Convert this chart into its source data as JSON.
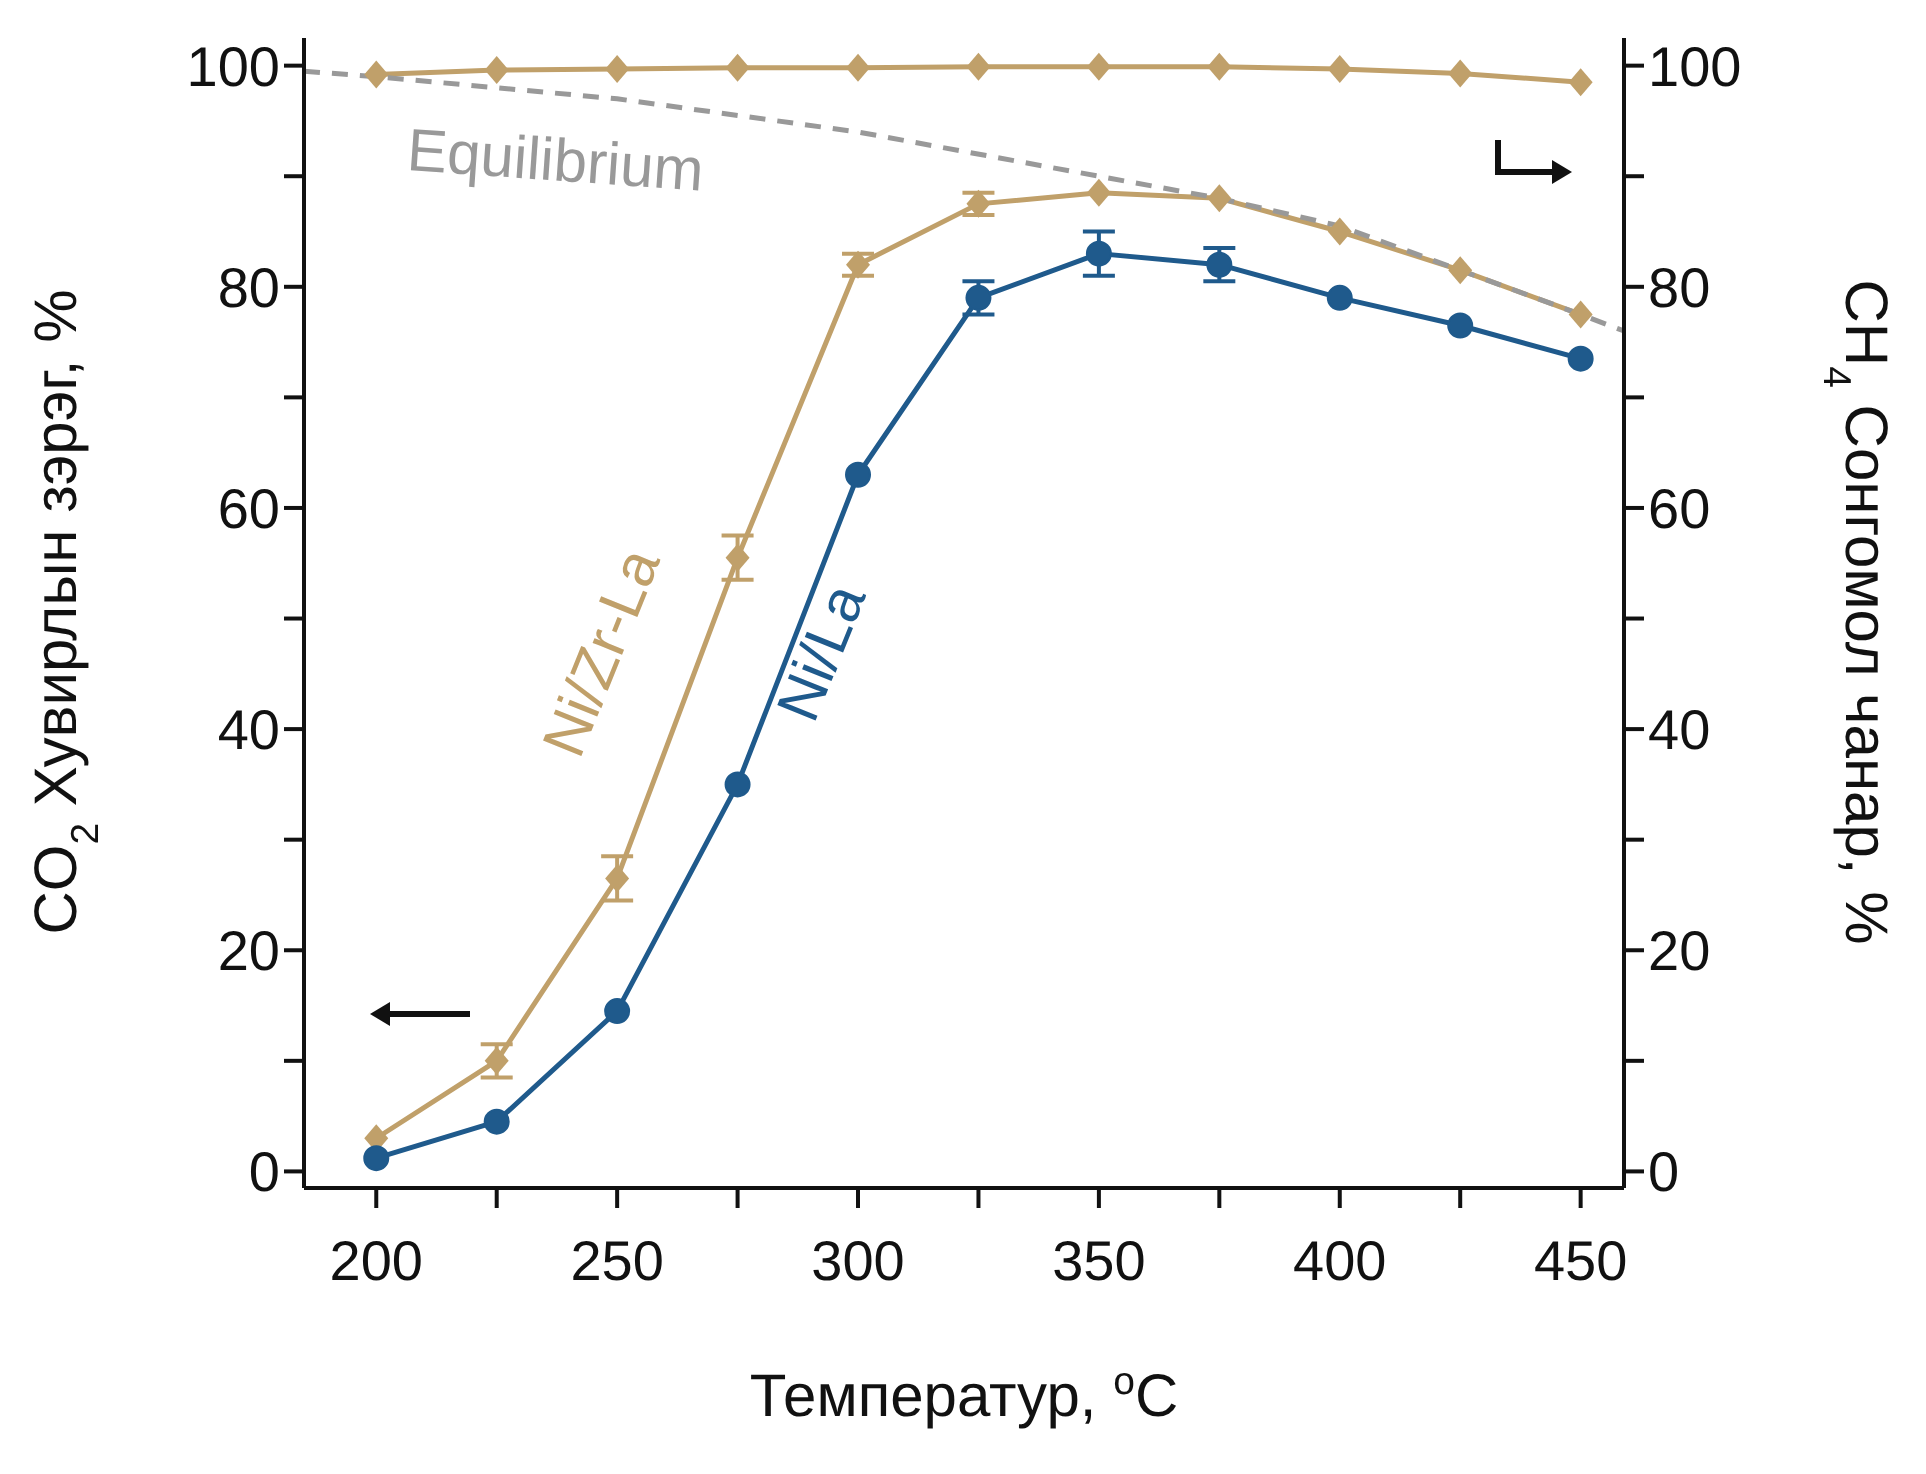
{
  "chart_data": {
    "type": "line",
    "xlabel": "Температур, $^{o}$C",
    "ylabel": "CO$_{2}$ Хувирлын зэрэг, %",
    "y2label": "CH$_{4}$ Сонгомол чанар, %",
    "x": [
      200,
      225,
      250,
      275,
      300,
      325,
      350,
      375,
      400,
      425,
      450
    ],
    "xlim": [
      185,
      459
    ],
    "xticks": [
      200,
      {
        "value": 225,
        "label": null
      },
      250,
      {
        "value": 275,
        "label": null
      },
      300,
      {
        "value": 325,
        "label": null
      },
      350,
      {
        "value": 375,
        "label": null
      },
      400,
      {
        "value": 425,
        "label": null
      },
      450
    ],
    "ylim": [
      -1.5,
      102.5
    ],
    "yticks": [
      0,
      {
        "value": 10,
        "label": null
      },
      20,
      {
        "value": 30,
        "label": null
      },
      40,
      {
        "value": 50,
        "label": null
      },
      60,
      {
        "value": 70,
        "label": null
      },
      80,
      {
        "value": 90,
        "label": null
      },
      100
    ],
    "y2lim": [
      -1.5,
      102.5
    ],
    "y2ticks": [
      0,
      {
        "value": 10,
        "label": null
      },
      20,
      {
        "value": 30,
        "label": null
      },
      40,
      {
        "value": 50,
        "label": null
      },
      60,
      {
        "value": 70,
        "label": null
      },
      80,
      {
        "value": 90,
        "label": null
      },
      100
    ],
    "series": [
      {
        "name": "Ni/Zr-La",
        "color": "#c0a06a",
        "marker": "diamond",
        "values": [
          3,
          10,
          26.5,
          55.5,
          82,
          87.5,
          88.5,
          88,
          85,
          81.5,
          77.5
        ],
        "errors": [
          null,
          1.5,
          2,
          2,
          1,
          1,
          null,
          null,
          null,
          null,
          null
        ]
      },
      {
        "name": "Ni/La",
        "color": "#1f5a8c",
        "marker": "circle",
        "values": [
          1.2,
          4.5,
          14.5,
          35,
          63,
          79,
          83,
          82,
          79,
          76.5,
          73.5
        ],
        "errors": [
          null,
          null,
          null,
          null,
          null,
          1.5,
          2,
          1.5,
          null,
          null,
          null
        ]
      },
      {
        "color": "#c0a06a",
        "marker": "diamond",
        "values": [
          99.2,
          99.6,
          99.7,
          99.8,
          99.8,
          99.9,
          99.9,
          99.9,
          99.7,
          99.3,
          98.5
        ]
      },
      {
        "name": "Equilibrium",
        "color": "#999999",
        "marker": "none",
        "line_style": "dashed",
        "x": [
          185,
          200,
          250,
          300,
          350,
          375,
          400,
          425,
          450,
          459
        ],
        "values": [
          99.5,
          99,
          97,
          94,
          90,
          88,
          85.5,
          81.5,
          77.5,
          76
        ]
      }
    ]
  }
}
